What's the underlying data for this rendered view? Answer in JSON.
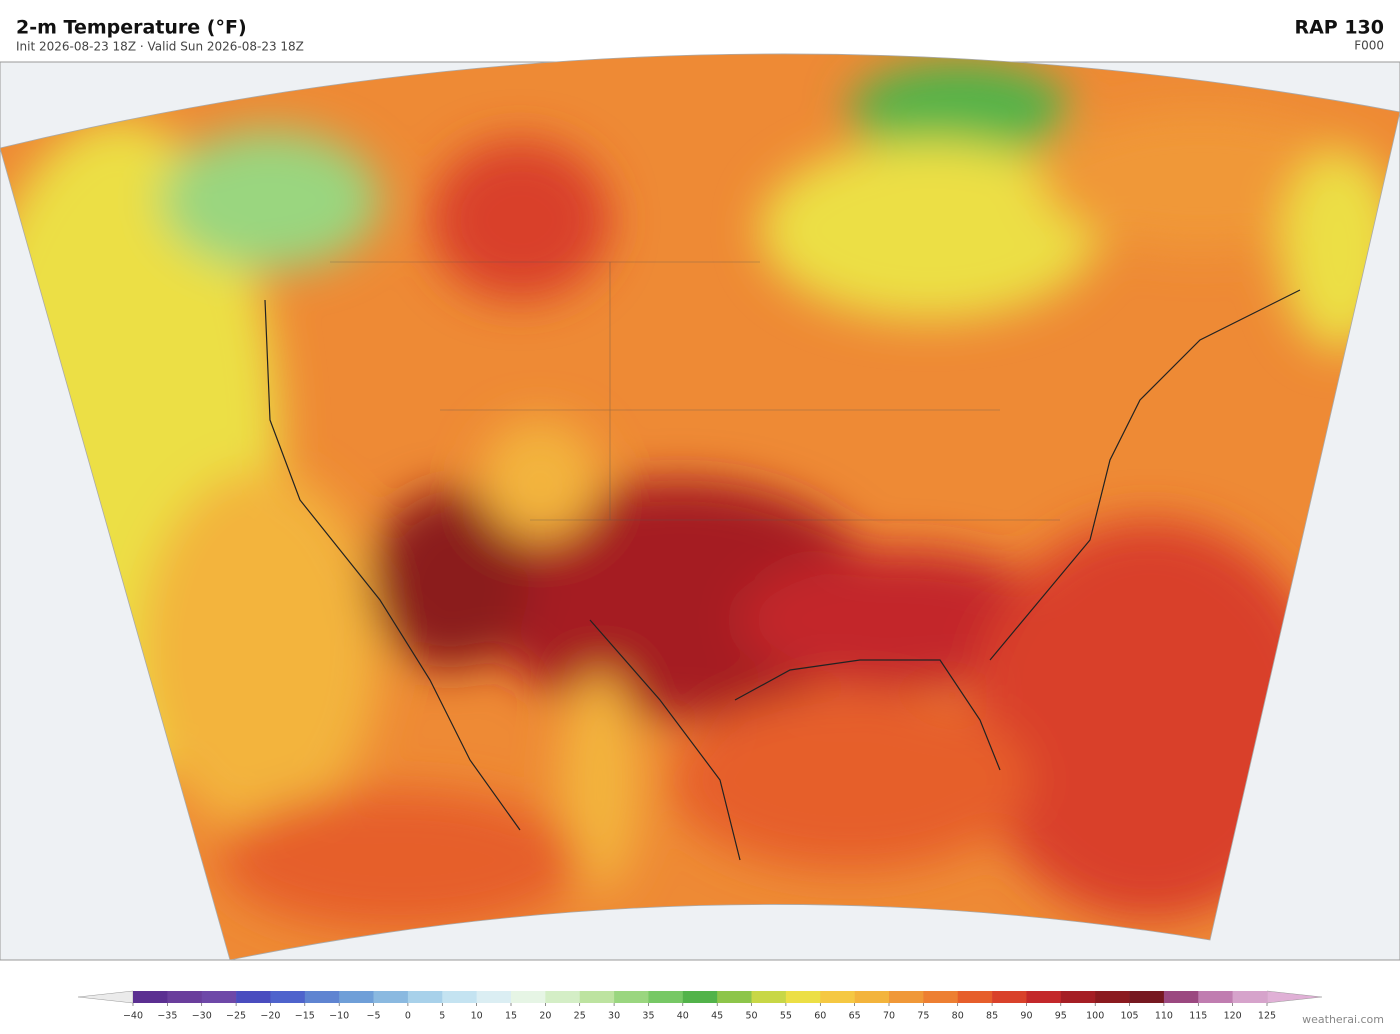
{
  "header": {
    "title": "2-m Temperature  (°F)",
    "subtitle": "Init 2026-08-23 18Z   ·   Valid Sun 2026-08-23 18Z",
    "model": "RAP  130",
    "forecast_hour": "F000"
  },
  "colorbar": {
    "ticks": [
      {
        "value": -40,
        "label": "−40"
      },
      {
        "value": -35,
        "label": "−35"
      },
      {
        "value": -30,
        "label": "−30"
      },
      {
        "value": -25,
        "label": "−25"
      },
      {
        "value": -20,
        "label": "−20"
      },
      {
        "value": -15,
        "label": "−15"
      },
      {
        "value": -10,
        "label": "−10"
      },
      {
        "value": -5,
        "label": "−5"
      },
      0,
      5,
      10,
      15,
      20,
      25,
      30,
      35,
      40,
      45,
      50,
      55,
      60,
      65,
      70,
      75,
      80,
      85,
      90,
      95,
      100,
      105,
      110,
      115,
      120,
      125
    ],
    "colors": [
      "#5b2f91",
      "#6a3e9c",
      "#6e48a8",
      "#4a4dbf",
      "#4e63cc",
      "#5f84d1",
      "#6f9fd8",
      "#8ab9e0",
      "#a8d1ea",
      "#c4e3f1",
      "#dbeef3",
      "#e6f5e5",
      "#d4eec6",
      "#bde3a0",
      "#9ad67f",
      "#77c865",
      "#52b34a",
      "#8dc54a",
      "#c8d746",
      "#ecdf45",
      "#f5c842",
      "#f3b43c",
      "#f09838",
      "#ed7f32",
      "#e65e2b",
      "#d9412a",
      "#c3282a",
      "#a51e24",
      "#8b1a1f",
      "#761820",
      "#9b4880",
      "#c07db0",
      "#d6a3cb"
    ],
    "under_color": "#ebebeb",
    "over_color": "#e0b0d6"
  },
  "footer": {
    "credit": "weatherai.com"
  }
}
